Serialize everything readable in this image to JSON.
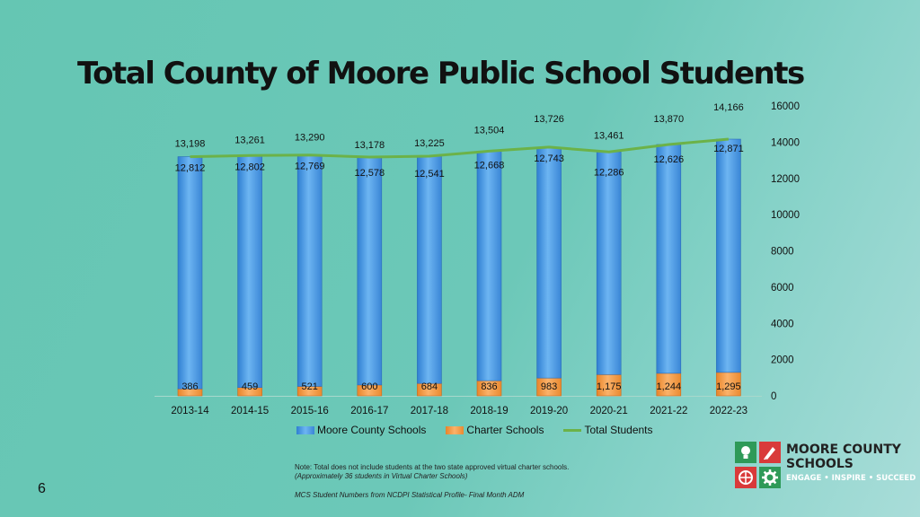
{
  "title": "Total County of Moore Public School Students",
  "chart_data": {
    "type": "bar",
    "stacked": true,
    "categories": [
      "2013-14",
      "2014-15",
      "2015-16",
      "2016-17",
      "2017-18",
      "2018-19",
      "2019-20",
      "2020-21",
      "2021-22",
      "2022-23"
    ],
    "series": [
      {
        "name": "Moore County Schools",
        "kind": "bar",
        "color": "#4a9be3",
        "values": [
          12812,
          12802,
          12769,
          12578,
          12541,
          12668,
          12743,
          12286,
          12626,
          12871
        ],
        "labels": [
          "12,812",
          "12,802",
          "12,769",
          "12,578",
          "12,541",
          "12,668",
          "12,743",
          "12,286",
          "12,626",
          "12,871"
        ]
      },
      {
        "name": "Charter Schools",
        "kind": "bar",
        "color": "#f29a3e",
        "values": [
          386,
          459,
          521,
          600,
          684,
          836,
          983,
          1175,
          1244,
          1295
        ],
        "labels": [
          "386",
          "459",
          "521",
          "600",
          "684",
          "836",
          "983",
          "1,175",
          "1,244",
          "1,295"
        ]
      },
      {
        "name": "Total Students",
        "kind": "line",
        "color": "#6cb248",
        "values": [
          13198,
          13261,
          13290,
          13178,
          13225,
          13504,
          13726,
          13461,
          13870,
          14166
        ],
        "labels": [
          "13,198",
          "13,261",
          "13,290",
          "13,178",
          "13,225",
          "13,504",
          "13,726",
          "13,461",
          "13,870",
          "14,166"
        ]
      }
    ],
    "y_axis": {
      "position": "right",
      "ylim": [
        0,
        16000
      ],
      "ticks": [
        "0",
        "2000",
        "4000",
        "6000",
        "8000",
        "10000",
        "12000",
        "14000",
        "16000"
      ]
    },
    "grid": false,
    "legend": "bottom"
  },
  "notes": [
    "Note: Total does not include students at the two state approved virtual charter schools.",
    "(Approximately 36 students in Virtual Charter Schools)",
    "MCS Student Numbers from NCDPI Statistical Profile- Final Month ADM"
  ],
  "page_number": "6",
  "logo": {
    "name_line1": "MOORE COUNTY",
    "name_line2": "SCHOOLS",
    "tagline": "ENGAGE • INSPIRE • SUCCEED",
    "icons": [
      "lightbulb-icon",
      "pencil-icon",
      "basketball-icon",
      "gear-icon"
    ],
    "colors": [
      "#2e9a58",
      "#d93a3a",
      "#d93a3a",
      "#2e9a58"
    ]
  }
}
